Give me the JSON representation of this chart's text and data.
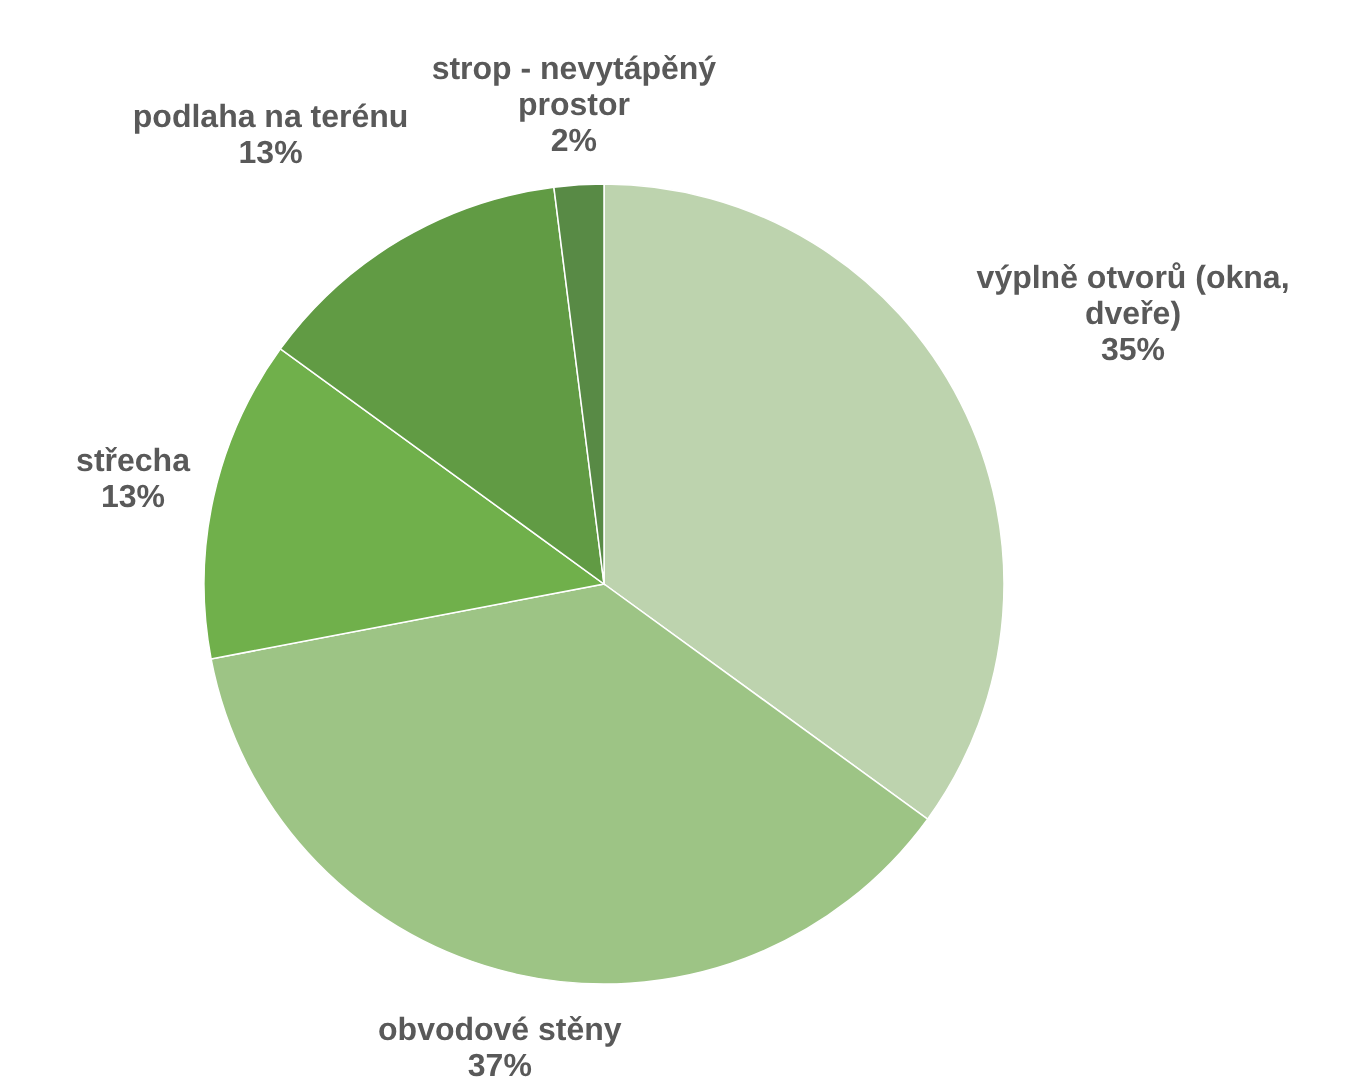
{
  "chart_data": {
    "type": "pie",
    "categories": [
      "výplně otvorů (okna, dveře)",
      "obvodové stěny",
      "střecha",
      "podlaha na terénu",
      "strop - nevytápěný prostor"
    ],
    "values": [
      35,
      37,
      13,
      13,
      2
    ],
    "colors": [
      "#bdd3ae",
      "#9dc485",
      "#70b04b",
      "#619b44",
      "#588a45"
    ],
    "value_labels": [
      "35%",
      "37%",
      "13%",
      "13%",
      "2%"
    ]
  }
}
